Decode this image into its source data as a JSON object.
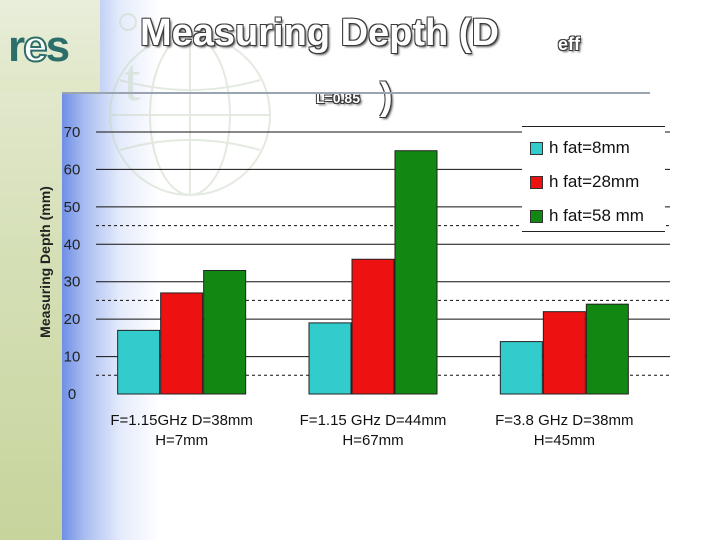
{
  "slide": {
    "title_main": "Measuring Depth (D",
    "title_sub1": "eff",
    "title_sub2": "L=0.85",
    "title_paren": ")",
    "logo_text": "res",
    "colors": {
      "sidebar": "#d6e0b8",
      "logo": "#2c6e6a",
      "accent_blue": "#6f8fe6"
    }
  },
  "chart_data": {
    "type": "bar",
    "title": "",
    "xlabel": "",
    "ylabel": "Measuring Depth (mm)",
    "ylim": [
      0,
      70
    ],
    "yticks": [
      0,
      10,
      20,
      30,
      40,
      50,
      60,
      70
    ],
    "grid": true,
    "legend_position": "top-right",
    "categories": [
      [
        "F=1.15GHz D=38mm",
        "H=7mm"
      ],
      [
        "F=1.15 GHz D=44mm",
        "H=67mm"
      ],
      [
        "F=3.8 GHz D=38mm",
        "H=45mm"
      ]
    ],
    "series": [
      {
        "name": "h fat=8mm",
        "color": "#33cccc",
        "values": [
          17,
          19,
          14
        ]
      },
      {
        "name": "h fat=28mm",
        "color": "#ee1111",
        "values": [
          27,
          36,
          22
        ]
      },
      {
        "name": "h fat=58 mm",
        "color": "#118811",
        "values": [
          33,
          65,
          24
        ]
      }
    ]
  }
}
